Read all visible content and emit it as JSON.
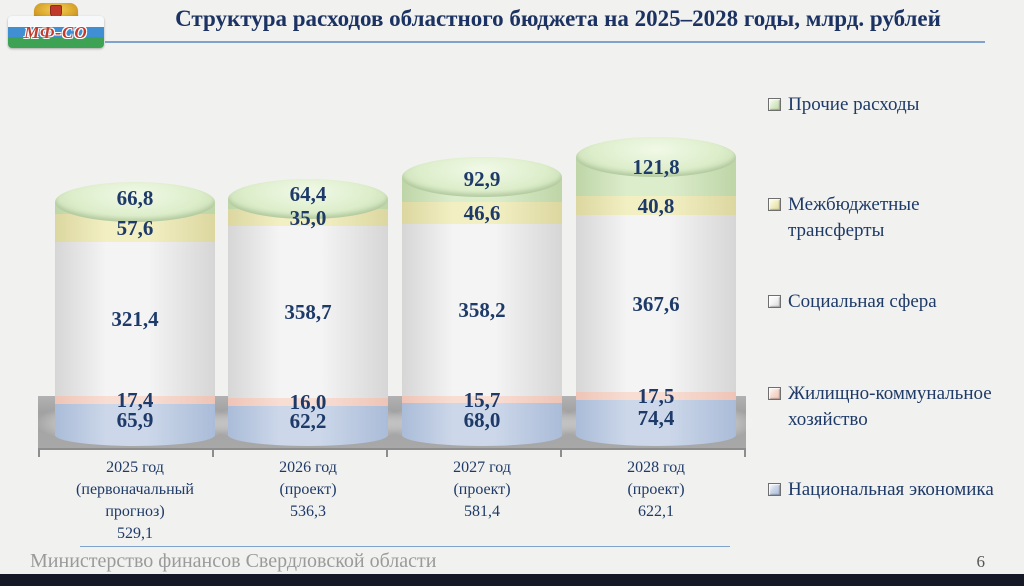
{
  "logo": {
    "text": "МФ-СО"
  },
  "header": {
    "title": "Структура расходов областного бюджета на 2025–2028 годы, млрд. рублей"
  },
  "chart_data": {
    "type": "bar",
    "variant": "3d-stacked-cylinders",
    "title": "Структура расходов областного бюджета на 2025–2028 годы, млрд. рублей",
    "unit": "млрд. рублей",
    "legend_position": "right",
    "categories": [
      {
        "label_lines": [
          "2025 год",
          "(первоначальный",
          "прогноз)"
        ],
        "total_label": "529,1",
        "total": 529.1
      },
      {
        "label_lines": [
          "2026 год",
          "(проект)"
        ],
        "total_label": "536,3",
        "total": 536.3
      },
      {
        "label_lines": [
          "2027 год",
          "(проект)"
        ],
        "total_label": "581,4",
        "total": 581.4
      },
      {
        "label_lines": [
          "2028 год",
          "(проект)"
        ],
        "total_label": "622,1",
        "total": 622.1
      }
    ],
    "series": [
      {
        "key": "national-economy",
        "name": "Национальная экономика",
        "values": [
          65.9,
          62.2,
          68.0,
          74.4
        ],
        "labels": [
          "65,9",
          "62,2",
          "68,0",
          "74,4"
        ],
        "color": "#ccd7e9",
        "edge_color": "#aabcd8"
      },
      {
        "key": "housing-utilities",
        "name": "Жилищно-коммунальное хозяйство",
        "values": [
          17.4,
          16.0,
          15.7,
          17.5
        ],
        "labels": [
          "17,4",
          "16,0",
          "15,7",
          "17,5"
        ],
        "color": "#f8ddd3",
        "edge_color": "#eec4b6"
      },
      {
        "key": "social-sphere",
        "name": "Социальная сфера",
        "values": [
          321.4,
          358.7,
          358.2,
          367.6
        ],
        "labels": [
          "321,4",
          "358,7",
          "358,2",
          "367,6"
        ],
        "color": "#f4f4f4",
        "edge_color": "#d6d6d6"
      },
      {
        "key": "interbudget-transfers",
        "name": "Межбюджетные трансферты",
        "values": [
          57.6,
          35.0,
          46.6,
          40.8
        ],
        "labels": [
          "57,6",
          "35,0",
          "46,6",
          "40,8"
        ],
        "color": "#f2efc3",
        "edge_color": "#dcd7a0"
      },
      {
        "key": "other-expenses",
        "name": "Прочие расходы",
        "values": [
          66.8,
          64.4,
          92.9,
          121.8
        ],
        "labels": [
          "66,8",
          "64,4",
          "92,9",
          "121,8"
        ],
        "color": "#dcedcc",
        "edge_color": "#bed5a7"
      }
    ],
    "legend": [
      {
        "key": "other-expenses",
        "label": "Прочие расходы"
      },
      {
        "key": "interbudget-transfers",
        "label": "Межбюджетные трансферты"
      },
      {
        "key": "social-sphere",
        "label": "Социальная сфера"
      },
      {
        "key": "housing-utilities",
        "label": "Жилищно-коммунальное хозяйство"
      },
      {
        "key": "national-economy",
        "label": "Национальная экономика"
      }
    ]
  },
  "footer": {
    "organization": "Министерство финансов Свердловской области",
    "page_number": "6"
  },
  "colors": {
    "background": "#f1f1ef",
    "title_text": "#1b3262",
    "value_text": "#1e3a68",
    "accent_line": "#7fa3cc",
    "platform": "#a5a5a5",
    "footer_text": "#9a9a9a",
    "bottom_bar": "#151925"
  }
}
